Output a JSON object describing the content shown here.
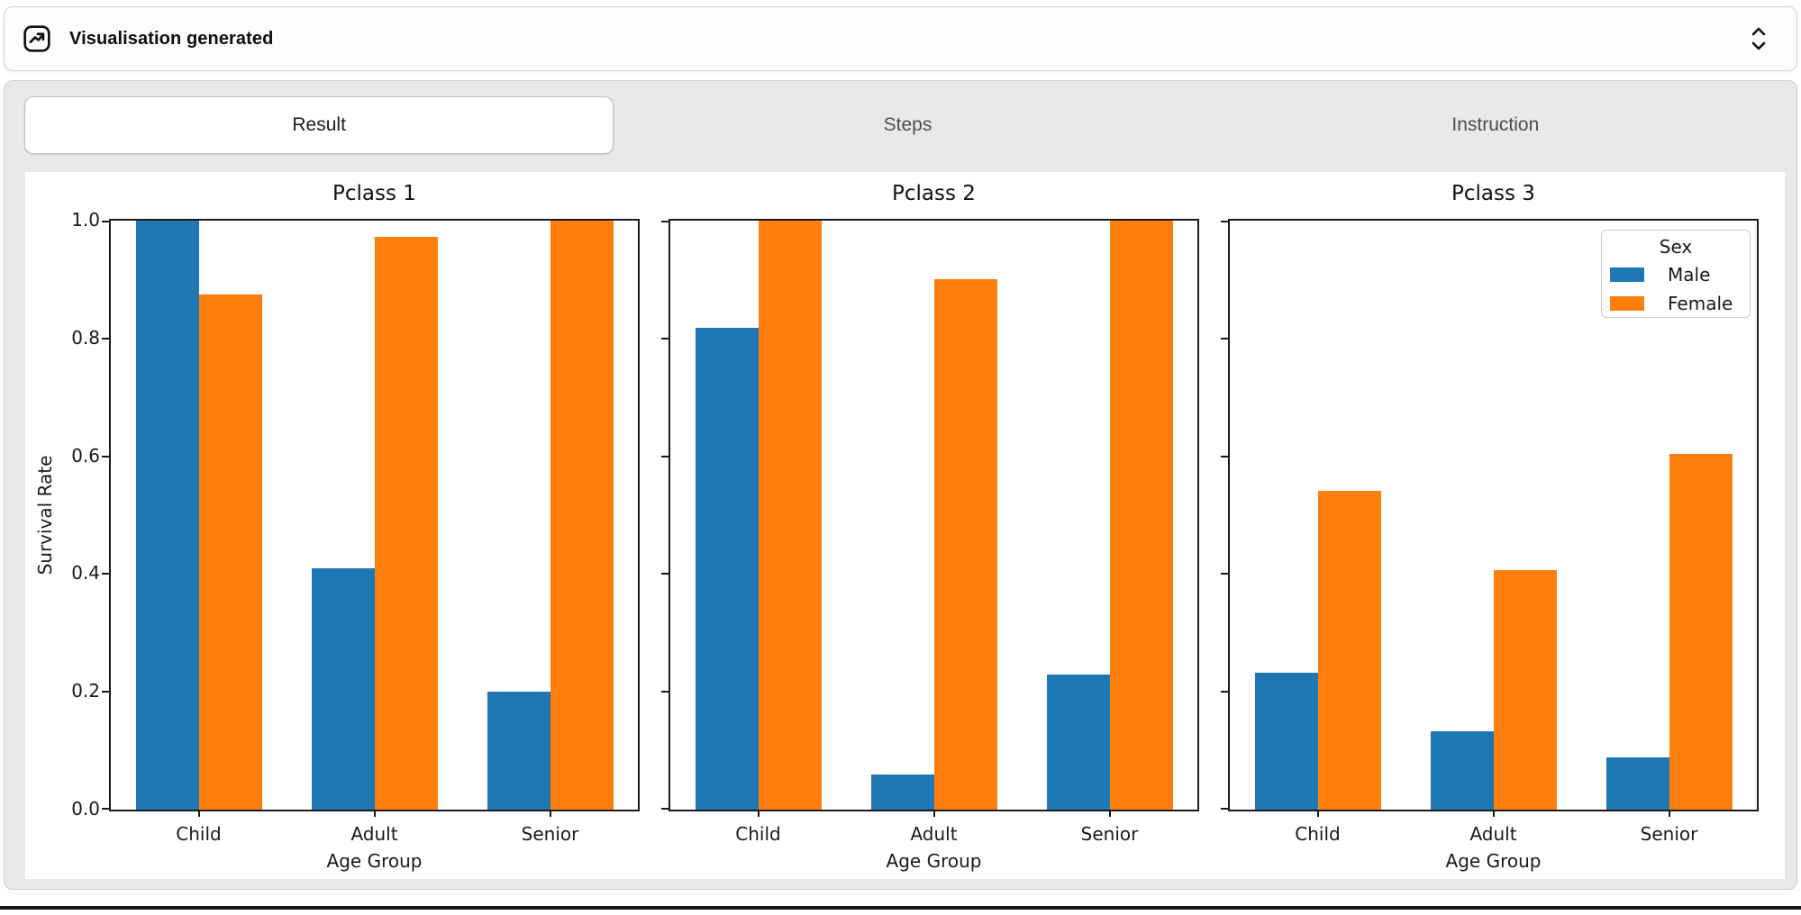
{
  "header": {
    "title": "Visualisation generated",
    "icon": "chart-trending-up-icon",
    "collapse_icon": "unfold-vertical-icon"
  },
  "tabs": [
    {
      "label": "Result",
      "active": true
    },
    {
      "label": "Steps",
      "active": false
    },
    {
      "label": "Instruction",
      "active": false
    }
  ],
  "chart_data": {
    "type": "bar",
    "layout": "1x3 subplots, shared y-axis",
    "categories": [
      "Child",
      "Adult",
      "Senior"
    ],
    "xlabel": "Age Group",
    "ylabel": "Survival Rate",
    "ylim": [
      0.0,
      1.0
    ],
    "yticks": [
      0.0,
      0.2,
      0.4,
      0.6,
      0.8,
      1.0
    ],
    "grid": false,
    "legend": {
      "title": "Sex",
      "position": "upper right of subplot 3",
      "entries": [
        {
          "label": "Male",
          "color": "#1f77b4"
        },
        {
          "label": "Female",
          "color": "#ff7f0e"
        }
      ]
    },
    "subplots": [
      {
        "title": "Pclass 1",
        "series": [
          {
            "name": "Male",
            "color": "#1f77b4",
            "values": [
              1.0,
              0.41,
              0.2
            ]
          },
          {
            "name": "Female",
            "color": "#ff7f0e",
            "values": [
              0.875,
              0.972,
              1.0
            ]
          }
        ]
      },
      {
        "title": "Pclass 2",
        "series": [
          {
            "name": "Male",
            "color": "#1f77b4",
            "values": [
              0.818,
              0.059,
              0.229
            ]
          },
          {
            "name": "Female",
            "color": "#ff7f0e",
            "values": [
              1.0,
              0.9,
              1.0
            ]
          }
        ]
      },
      {
        "title": "Pclass 3",
        "series": [
          {
            "name": "Male",
            "color": "#1f77b4",
            "values": [
              0.232,
              0.133,
              0.089
            ]
          },
          {
            "name": "Female",
            "color": "#ff7f0e",
            "values": [
              0.542,
              0.406,
              0.604
            ]
          }
        ]
      }
    ]
  }
}
